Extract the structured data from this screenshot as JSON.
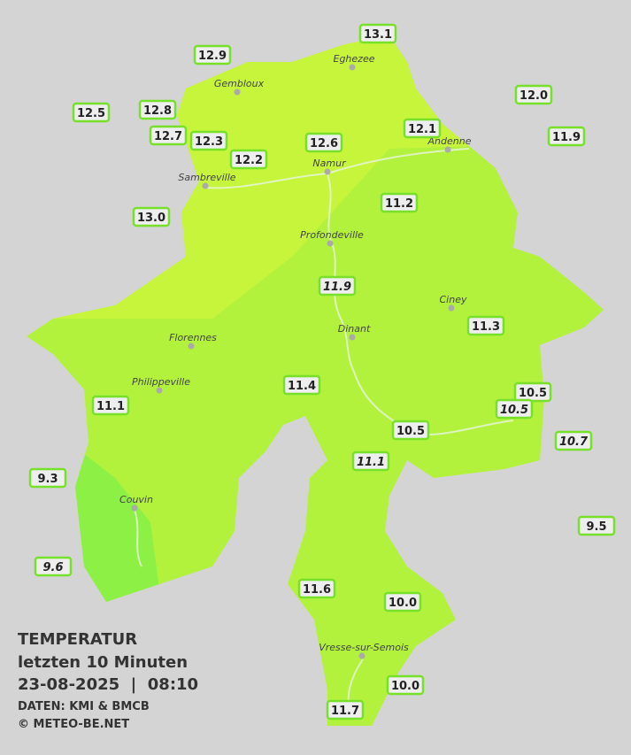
{
  "towns": [
    "Eghezee",
    "Gembloux",
    "Andenne",
    "Namur",
    "Sambreville",
    "Profondeville",
    "Ciney",
    "Dinant",
    "Florennes",
    "Philippeville",
    "Couvin",
    "Vresse-sur-Semois"
  ],
  "stations": [
    {
      "label": "13.1"
    },
    {
      "label": "12.9"
    },
    {
      "label": "12.5"
    },
    {
      "label": "12.8"
    },
    {
      "label": "12.7"
    },
    {
      "label": "12.3"
    },
    {
      "label": "12.2"
    },
    {
      "label": "12.6"
    },
    {
      "label": "12.1"
    },
    {
      "label": "12.0"
    },
    {
      "label": "11.9"
    },
    {
      "label": "13.0"
    },
    {
      "label": "11.2"
    },
    {
      "label": "11.9",
      "italic": true
    },
    {
      "label": "11.3"
    },
    {
      "label": "11.4"
    },
    {
      "label": "11.1"
    },
    {
      "label": "10.5"
    },
    {
      "label": "10.5",
      "italic": true
    },
    {
      "label": "10.5"
    },
    {
      "label": "10.7",
      "italic": true
    },
    {
      "label": "11.1",
      "italic": true
    },
    {
      "label": "9.3"
    },
    {
      "label": "9.5"
    },
    {
      "label": "9.6",
      "italic": true
    },
    {
      "label": "11.6"
    },
    {
      "label": "10.0"
    },
    {
      "label": "10.0"
    },
    {
      "label": "11.7"
    }
  ],
  "info": {
    "title": "TEMPERATUR",
    "subtitle": "letzten 10 Minuten",
    "datetime": "23-08-2025  |  08:10",
    "source": "DATEN: KMI & BMCB",
    "copyright": "© METEO-BE.NET"
  }
}
